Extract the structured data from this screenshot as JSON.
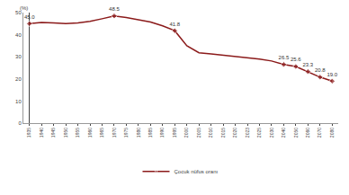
{
  "chart_data": {
    "type": "line",
    "y_label": "(%)",
    "categories": [
      "1935",
      "1940",
      "1945",
      "1950",
      "1955",
      "1960",
      "1965",
      "1970",
      "1975",
      "1980",
      "1985",
      "1990",
      "1995",
      "2000",
      "2005",
      "2010",
      "2015",
      "2020",
      "2023",
      "2025",
      "2030",
      "2040",
      "2050",
      "2060",
      "2070",
      "2080"
    ],
    "series": [
      {
        "name": "Çocuk nüfus oranı",
        "color": "#8b1a1a",
        "marker": "diamond",
        "values": [
          45.0,
          45.5,
          45.3,
          45.0,
          45.3,
          46.0,
          47.2,
          48.5,
          47.8,
          46.9,
          45.7,
          44.0,
          41.8,
          35.0,
          31.8,
          31.3,
          30.8,
          30.2,
          29.6,
          29.0,
          28.1,
          26.5,
          25.6,
          23.3,
          20.8,
          19.0
        ],
        "value_labels": [
          "45.0",
          null,
          null,
          null,
          null,
          null,
          null,
          "48.5",
          null,
          null,
          null,
          null,
          "41.8",
          null,
          null,
          null,
          null,
          null,
          null,
          null,
          null,
          "26.5",
          "25.6",
          "23.3",
          "20.8",
          "19.0"
        ]
      }
    ],
    "ylim": [
      0,
      50
    ],
    "yticks": [
      0,
      10,
      20,
      30,
      40,
      50
    ],
    "grid": false,
    "legend": "bottom",
    "data_labels": true
  }
}
